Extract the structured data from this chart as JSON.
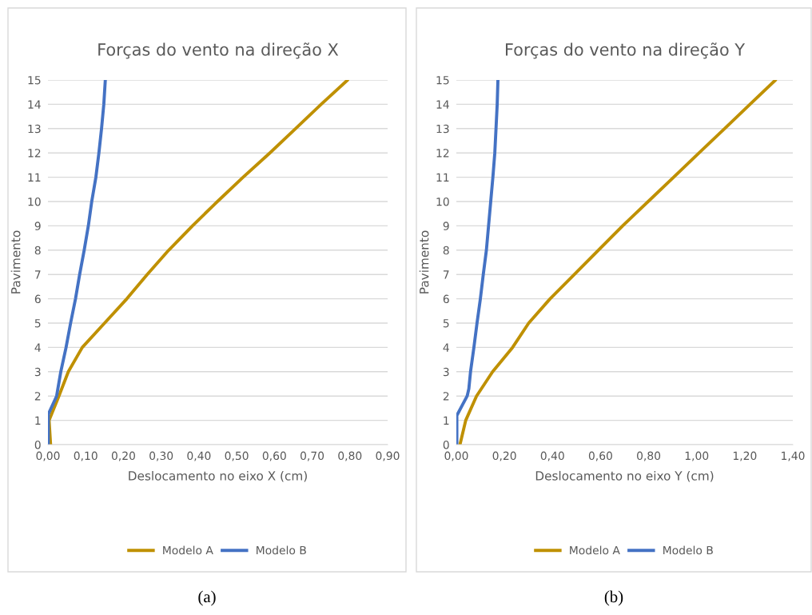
{
  "chart_data": [
    {
      "type": "line",
      "title": "Forças do vento na direção X",
      "xlabel": "Deslocamento no eixo X (cm)",
      "ylabel": "Pavimento",
      "annotations": [
        "(a)"
      ],
      "xlim": [
        0,
        0.9
      ],
      "xticks": [
        {
          "value": 0,
          "label": "0,00"
        },
        {
          "value": 0.1,
          "label": "0,10"
        },
        {
          "value": 0.2,
          "label": "0,20"
        },
        {
          "value": 0.3,
          "label": "0,30"
        },
        {
          "value": 0.4,
          "label": "0,40"
        },
        {
          "value": 0.5,
          "label": "0,50"
        },
        {
          "value": 0.6,
          "label": "0,60"
        },
        {
          "value": 0.7,
          "label": "0,70"
        },
        {
          "value": 0.8,
          "label": "0,80"
        },
        {
          "value": 0.9,
          "label": "0,90"
        }
      ],
      "ylim": [
        0,
        15
      ],
      "yticks": [
        0,
        1,
        2,
        3,
        4,
        5,
        6,
        7,
        8,
        9,
        10,
        11,
        12,
        13,
        14,
        15
      ],
      "grid": "y",
      "legend": "bottom",
      "line_style": "solid",
      "series": [
        {
          "name": "Modelo A",
          "color": "#bf9000",
          "x": [
            0.007,
            0.003,
            0.029,
            0.054,
            0.091,
            0.15,
            0.209,
            0.263,
            0.32,
            0.383,
            0.449,
            0.517,
            0.588,
            0.656,
            0.724,
            0.794
          ],
          "values": [
            0,
            1,
            2,
            3,
            4,
            5,
            6,
            7,
            8,
            9,
            10,
            11,
            12,
            13,
            14,
            15
          ]
        },
        {
          "name": "Modelo B",
          "color": "#4472c4",
          "x": [
            0.001,
            0.001,
            0.001,
            0.023,
            0.034,
            0.048,
            0.06,
            0.073,
            0.084,
            0.096,
            0.107,
            0.116,
            0.127,
            0.135,
            0.142,
            0.148,
            0.152
          ],
          "values": [
            0,
            1,
            1.25,
            2,
            3,
            4,
            5,
            6,
            7,
            8,
            9,
            10,
            11,
            12,
            13,
            14,
            15
          ]
        }
      ]
    },
    {
      "type": "line",
      "title": "Forças do vento na direção Y",
      "xlabel": "Deslocamento no eixo Y (cm)",
      "ylabel": "Pavimento",
      "annotations": [
        "(b)"
      ],
      "xlim": [
        0,
        1.4
      ],
      "xticks": [
        {
          "value": 0,
          "label": "0,00"
        },
        {
          "value": 0.2,
          "label": "0,20"
        },
        {
          "value": 0.4,
          "label": "0,40"
        },
        {
          "value": 0.6,
          "label": "0,60"
        },
        {
          "value": 0.8,
          "label": "0,80"
        },
        {
          "value": 1.0,
          "label": "1,00"
        },
        {
          "value": 1.2,
          "label": "1,20"
        },
        {
          "value": 1.4,
          "label": "1,40"
        }
      ],
      "ylim": [
        0,
        15
      ],
      "yticks": [
        0,
        1,
        2,
        3,
        4,
        5,
        6,
        7,
        8,
        9,
        10,
        11,
        12,
        13,
        14,
        15
      ],
      "grid": "y",
      "legend": "bottom",
      "line_style": "solid",
      "series": [
        {
          "name": "Modelo A",
          "color": "#bf9000",
          "x": [
            0.015,
            0.039,
            0.084,
            0.151,
            0.234,
            0.301,
            0.39,
            0.491,
            0.591,
            0.692,
            0.798,
            0.904,
            1.01,
            1.116,
            1.222,
            1.328
          ],
          "values": [
            0,
            1,
            2,
            3,
            4,
            5,
            6,
            7,
            8,
            9,
            10,
            11,
            12,
            13,
            14,
            15
          ]
        },
        {
          "name": "Modelo B",
          "color": "#4472c4",
          "x": [
            0.002,
            0.002,
            0.002,
            0.045,
            0.052,
            0.059,
            0.073,
            0.086,
            0.1,
            0.112,
            0.125,
            0.134,
            0.143,
            0.152,
            0.16,
            0.165,
            0.17,
            0.173
          ],
          "values": [
            0,
            1,
            1.2,
            2,
            2.3,
            3,
            4,
            5,
            6,
            7,
            8,
            9,
            10,
            11,
            12,
            13,
            14,
            15
          ]
        }
      ]
    }
  ]
}
